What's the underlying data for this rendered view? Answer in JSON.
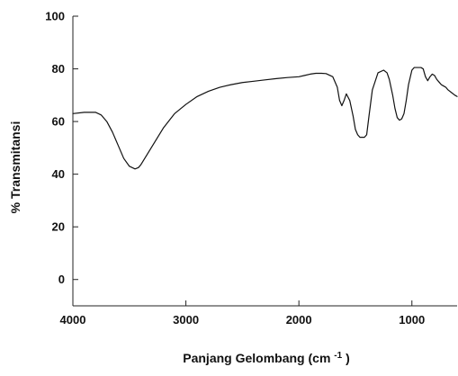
{
  "chart_data": {
    "type": "line",
    "xlabel": "Panjang Gelombang (cm",
    "xlabel_superscript": "-1",
    "xlabel_suffix": ")",
    "ylabel": "% Transmitansi",
    "xlim": [
      4000,
      600
    ],
    "ylim": [
      -10,
      100
    ],
    "x_ticks": [
      4000,
      3000,
      2000,
      1000
    ],
    "x_tick_labels": [
      "4000",
      "3000",
      "2000",
      "1000"
    ],
    "y_ticks": [
      0,
      20,
      40,
      60,
      80,
      100
    ],
    "y_tick_labels": [
      "0",
      "20",
      "40",
      "60",
      "80",
      "100"
    ],
    "grid": false,
    "legend": "none",
    "line_color": "#111111",
    "series": [
      {
        "x": [
          4000,
          3900,
          3800,
          3750,
          3700,
          3650,
          3600,
          3550,
          3500,
          3450,
          3420,
          3400,
          3350,
          3300,
          3200,
          3100,
          3000,
          2900,
          2800,
          2700,
          2600,
          2500,
          2400,
          2300,
          2200,
          2100,
          2000,
          1950,
          1900,
          1850,
          1800,
          1760,
          1700,
          1660,
          1640,
          1620,
          1600,
          1580,
          1550,
          1520,
          1500,
          1480,
          1460,
          1440,
          1420,
          1400,
          1380,
          1350,
          1300,
          1250,
          1220,
          1200,
          1170,
          1150,
          1130,
          1110,
          1090,
          1070,
          1050,
          1030,
          1000,
          980,
          950,
          920,
          900,
          880,
          860,
          840,
          820,
          800,
          780,
          760,
          740,
          720,
          700,
          680,
          650,
          620,
          600
        ],
        "y": [
          63,
          63.5,
          63.5,
          62.5,
          60,
          56,
          51,
          46,
          43,
          42,
          42.5,
          43.5,
          47,
          50.5,
          57.5,
          63,
          66.5,
          69.5,
          71.5,
          73,
          74,
          74.8,
          75.3,
          75.8,
          76.3,
          76.7,
          77,
          77.5,
          78,
          78.3,
          78.3,
          78.2,
          77,
          73,
          68,
          66,
          68,
          70.5,
          68,
          62,
          57,
          55,
          54,
          54,
          54,
          55,
          62,
          72,
          78.5,
          79.5,
          78.5,
          76,
          70,
          65,
          61.5,
          60.5,
          61,
          63,
          68,
          74,
          79.5,
          80.5,
          80.5,
          80.5,
          80,
          77,
          75.5,
          77,
          78,
          77.5,
          76,
          75,
          74,
          73.5,
          73,
          72,
          71,
          70,
          69.5
        ]
      }
    ]
  }
}
